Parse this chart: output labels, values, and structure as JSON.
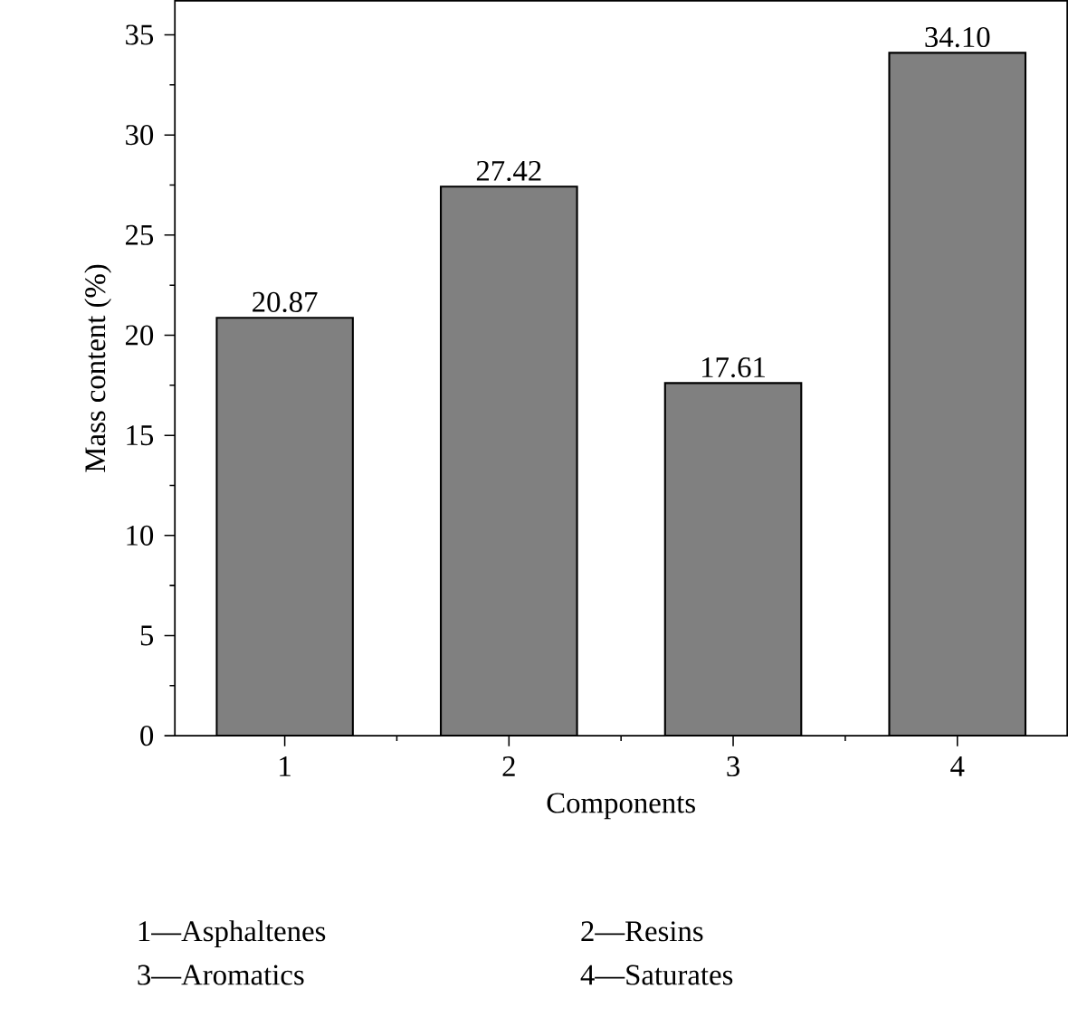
{
  "chart_data": {
    "type": "bar",
    "xlabel": "Components",
    "ylabel": "Mass content (%)",
    "categories": [
      "1",
      "2",
      "3",
      "4"
    ],
    "values": [
      20.87,
      27.42,
      17.61,
      34.1
    ],
    "value_labels": [
      "20.87",
      "27.42",
      "17.61",
      "34.10"
    ],
    "color": "#808080",
    "ylim": [
      0,
      36.7
    ],
    "yticks": [
      0,
      5,
      10,
      15,
      20,
      25,
      30,
      35
    ],
    "grid": false,
    "annotations": [
      "1—Asphaltenes",
      "2—Resins",
      "3—Aromatics",
      "4—Saturates"
    ]
  }
}
